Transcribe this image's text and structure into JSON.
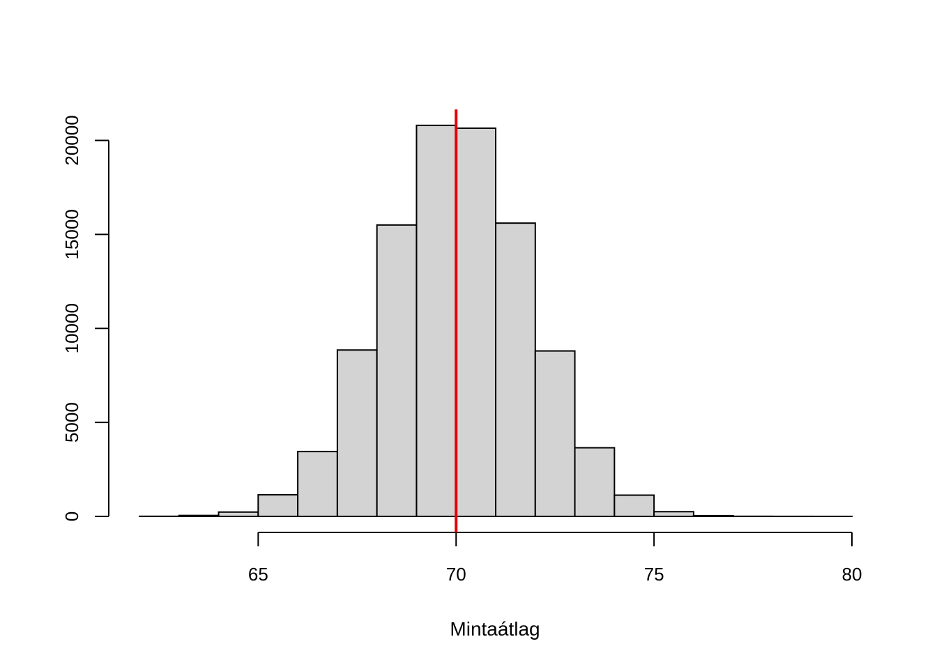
{
  "chart_data": {
    "type": "histogram",
    "title": "",
    "xlabel": "Mintaátlag",
    "ylabel": "",
    "bin_edges": [
      62,
      63,
      64,
      65,
      66,
      67,
      68,
      69,
      70,
      71,
      72,
      73,
      74,
      75,
      76,
      77,
      78,
      79,
      80
    ],
    "counts": [
      5,
      50,
      230,
      1150,
      3450,
      8850,
      15500,
      20800,
      20650,
      15600,
      8800,
      3650,
      1130,
      250,
      40,
      5,
      2,
      1
    ],
    "xlim": [
      62,
      80
    ],
    "ylim": [
      0,
      21500
    ],
    "xticks": [
      65,
      70,
      75,
      80
    ],
    "yticks": [
      0,
      5000,
      10000,
      15000,
      20000
    ],
    "reference_line": {
      "x": 70,
      "color": "#e60000"
    },
    "bar_fill": "#d3d3d3",
    "bar_stroke": "#000000"
  }
}
